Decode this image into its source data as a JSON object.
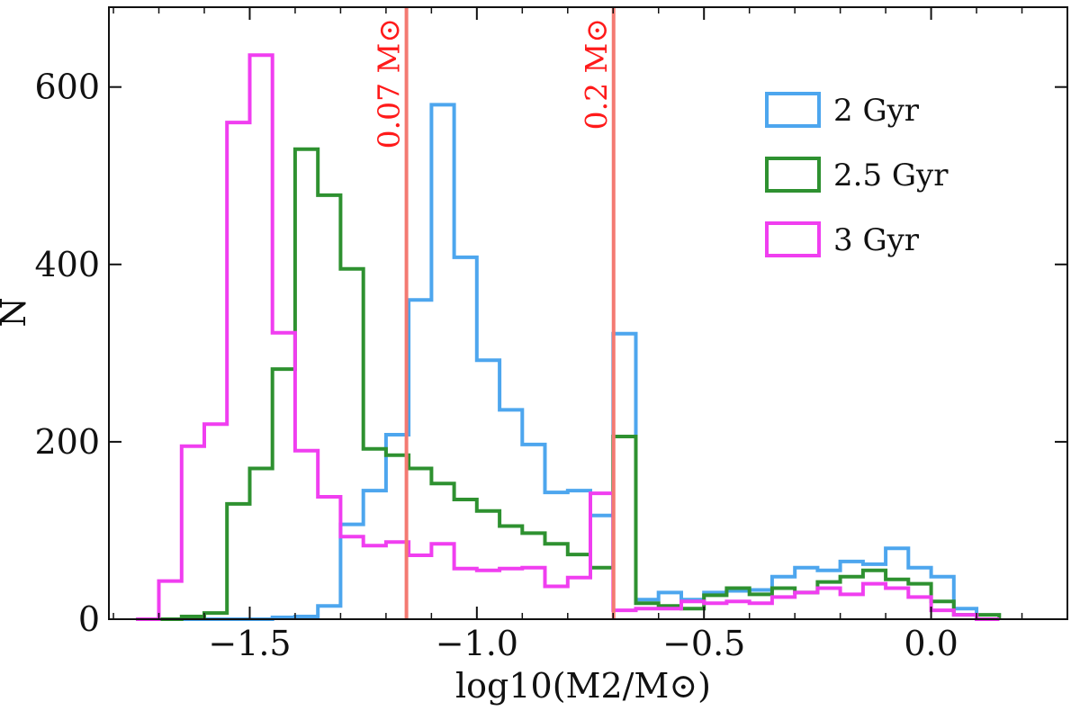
{
  "chart_data": {
    "type": "histogram",
    "title": "",
    "xlabel": "log10(M2/M⊙)",
    "ylabel": "N",
    "xlim": [
      -1.81,
      0.3
    ],
    "ylim": [
      0,
      690
    ],
    "grid": false,
    "legend_position": "top-right",
    "xticks": [
      -1.5,
      -1.0,
      -0.5,
      0.0
    ],
    "xtick_labels": [
      "−1.5",
      "−1.0",
      "−0.5",
      "0.0"
    ],
    "yticks": [
      0,
      200,
      400,
      600
    ],
    "ytick_labels": [
      "0",
      "200",
      "400",
      "600"
    ],
    "bin_edges": [
      -1.75,
      -1.7,
      -1.65,
      -1.6,
      -1.55,
      -1.5,
      -1.45,
      -1.4,
      -1.35,
      -1.3,
      -1.25,
      -1.2,
      -1.15,
      -1.1,
      -1.05,
      -1.0,
      -0.95,
      -0.9,
      -0.85,
      -0.8,
      -0.75,
      -0.7,
      -0.65,
      -0.6,
      -0.55,
      -0.5,
      -0.45,
      -0.4,
      -0.35,
      -0.3,
      -0.25,
      -0.2,
      -0.15,
      -0.1,
      -0.05,
      0.0,
      0.05,
      0.1,
      0.15
    ],
    "series": [
      {
        "name": "2 Gyr",
        "color": "#4da6ee",
        "counts": [
          0,
          0,
          0,
          0,
          0,
          0,
          2,
          3,
          15,
          107,
          145,
          208,
          360,
          580,
          408,
          292,
          236,
          197,
          143,
          145,
          117,
          322,
          22,
          30,
          22,
          30,
          32,
          33,
          48,
          58,
          55,
          65,
          62,
          80,
          58,
          48,
          12,
          0
        ]
      },
      {
        "name": "2.5 Gyr",
        "color": "#2e9130",
        "counts": [
          0,
          0,
          3,
          7,
          130,
          170,
          282,
          530,
          478,
          395,
          192,
          185,
          170,
          153,
          135,
          122,
          105,
          97,
          85,
          73,
          58,
          206,
          18,
          15,
          12,
          27,
          35,
          28,
          35,
          30,
          42,
          48,
          55,
          45,
          40,
          20,
          5,
          5
        ]
      },
      {
        "name": "3 Gyr",
        "color": "#f03ef0",
        "counts": [
          0,
          43,
          195,
          220,
          560,
          636,
          323,
          190,
          138,
          93,
          83,
          87,
          72,
          85,
          57,
          55,
          57,
          58,
          37,
          47,
          142,
          10,
          12,
          12,
          20,
          18,
          20,
          18,
          25,
          30,
          35,
          28,
          40,
          35,
          25,
          10,
          5,
          0
        ]
      }
    ],
    "vlines": [
      {
        "x": -1.155,
        "label": "0.07 M⊙",
        "color": "#f47a72"
      },
      {
        "x": -0.699,
        "label": "0.2 M⊙",
        "color": "#f47a72"
      }
    ]
  }
}
